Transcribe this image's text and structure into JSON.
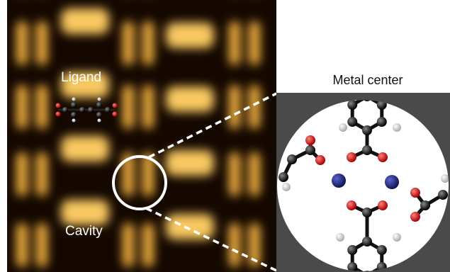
{
  "labels": {
    "ligand": "Ligand",
    "cavity": "Cavity",
    "inset_title": "Metal center"
  }
}
